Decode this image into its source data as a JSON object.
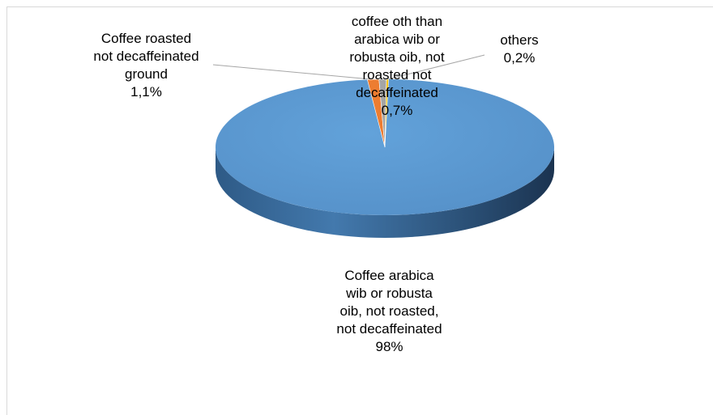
{
  "colors": {
    "top_main": "#5b9bd5",
    "side_main": "#3a6fa1",
    "side_dark": "#1f3b5a",
    "slice_orange": "#ed7d31",
    "slice_grey": "#a5a5a5",
    "slice_gold": "#ffc000",
    "leader": "#a6a6a6"
  },
  "chart_data": {
    "type": "pie",
    "title": "",
    "slices": [
      {
        "name": "Coffee arabica wib or robusta oib, not roasted, not decaffeinated",
        "value": 98,
        "label_lines": [
          "Coffee arabica",
          "wib or robusta",
          "oib, not roasted,",
          "not decaffeinated",
          "98%"
        ],
        "color": "#5b9bd5"
      },
      {
        "name": "Coffee roasted not decaffeinated ground",
        "value": 1.1,
        "label_lines": [
          "Coffee roasted",
          "not decaffeinated",
          "ground",
          "1,1%"
        ],
        "color": "#ed7d31"
      },
      {
        "name": "coffee oth than arabica wib or robusta oib, not roasted not decaffeinated",
        "value": 0.7,
        "label_lines": [
          "coffee oth than",
          "arabica wib or",
          "robusta oib, not",
          "roasted not",
          "decaffeinated",
          "0,7%"
        ],
        "color": "#a5a5a5"
      },
      {
        "name": "others",
        "value": 0.2,
        "label_lines": [
          "others",
          "0,2%"
        ],
        "color": "#ffc000"
      }
    ]
  }
}
